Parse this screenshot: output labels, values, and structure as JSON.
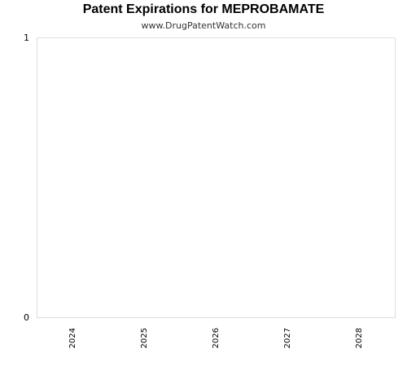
{
  "chart_data": {
    "type": "bar",
    "title": "Patent Expirations for MEPROBAMATE",
    "subtitle": "www.DrugPatentWatch.com",
    "categories": [
      "2024",
      "2025",
      "2026",
      "2027",
      "2028"
    ],
    "series": [
      {
        "values": [
          0,
          0,
          0,
          0,
          0
        ]
      }
    ],
    "xlabel": "",
    "ylabel": "",
    "ylim": [
      0,
      1
    ],
    "yticks": [
      "0",
      "1"
    ],
    "grid": false,
    "legend": "none",
    "colors": {
      "frame": "#dddddd",
      "text": "#000000",
      "subtitle": "#333333"
    }
  }
}
